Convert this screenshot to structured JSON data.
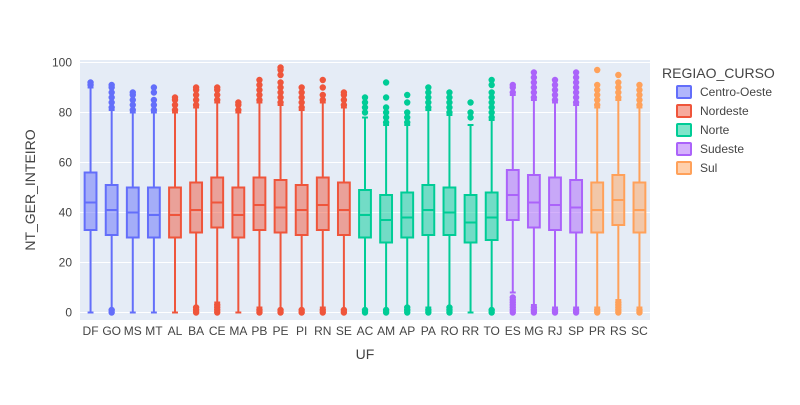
{
  "chart_data": {
    "type": "box",
    "xlabel": "UF",
    "ylabel": "NT_GER_INTEIRO",
    "ylim": [
      -3,
      101
    ],
    "yticks": [
      0,
      20,
      40,
      60,
      80,
      100
    ],
    "grid": true,
    "legend": {
      "title": "REGIAO_CURSO",
      "placement": "right",
      "entries": [
        {
          "name": "Centro-Oeste",
          "color": "#636efa"
        },
        {
          "name": "Nordeste",
          "color": "#EF553B"
        },
        {
          "name": "Norte",
          "color": "#00cc96"
        },
        {
          "name": "Sudeste",
          "color": "#ab63fa"
        },
        {
          "name": "Sul",
          "color": "#FFA15A"
        }
      ]
    },
    "categories": [
      "DF",
      "GO",
      "MS",
      "MT",
      "AL",
      "BA",
      "CE",
      "MA",
      "PB",
      "PE",
      "PI",
      "RN",
      "SE",
      "AC",
      "AM",
      "AP",
      "PA",
      "RO",
      "RR",
      "TO",
      "ES",
      "MG",
      "RJ",
      "SP",
      "PR",
      "RS",
      "SC"
    ],
    "boxes": [
      {
        "uf": "DF",
        "region": "Centro-Oeste",
        "lower_fence": 0,
        "q1": 33,
        "median": 44,
        "q3": 56,
        "upper_fence": 90,
        "outliers_low": [],
        "outliers_high": [
          91,
          92
        ]
      },
      {
        "uf": "GO",
        "region": "Centro-Oeste",
        "lower_fence": 1,
        "q1": 31,
        "median": 41,
        "q3": 51,
        "upper_fence": 81,
        "outliers_low": [
          0,
          1
        ],
        "outliers_high": [
          82,
          84,
          86,
          88,
          90,
          91
        ]
      },
      {
        "uf": "MS",
        "region": "Centro-Oeste",
        "lower_fence": 0,
        "q1": 30,
        "median": 40,
        "q3": 50,
        "upper_fence": 80,
        "outliers_low": [],
        "outliers_high": [
          81,
          83,
          85,
          87,
          88
        ]
      },
      {
        "uf": "MT",
        "region": "Centro-Oeste",
        "lower_fence": 0,
        "q1": 30,
        "median": 39,
        "q3": 50,
        "upper_fence": 80,
        "outliers_low": [],
        "outliers_high": [
          81,
          83,
          85,
          88,
          90
        ]
      },
      {
        "uf": "AL",
        "region": "Nordeste",
        "lower_fence": 0,
        "q1": 30,
        "median": 39,
        "q3": 50,
        "upper_fence": 80,
        "outliers_low": [],
        "outliers_high": [
          81,
          83,
          85,
          86
        ]
      },
      {
        "uf": "BA",
        "region": "Nordeste",
        "lower_fence": 0,
        "q1": 32,
        "median": 41,
        "q3": 52,
        "upper_fence": 82,
        "outliers_low": [
          0,
          1,
          2
        ],
        "outliers_high": [
          83,
          85,
          87,
          89,
          90
        ]
      },
      {
        "uf": "CE",
        "region": "Nordeste",
        "lower_fence": 4,
        "q1": 34,
        "median": 44,
        "q3": 54,
        "upper_fence": 84,
        "outliers_low": [
          0,
          1,
          2,
          3
        ],
        "outliers_high": [
          85,
          87,
          89,
          90
        ]
      },
      {
        "uf": "MA",
        "region": "Nordeste",
        "lower_fence": 0,
        "q1": 30,
        "median": 39,
        "q3": 50,
        "upper_fence": 80,
        "outliers_low": [],
        "outliers_high": [
          81,
          83,
          84
        ]
      },
      {
        "uf": "PB",
        "region": "Nordeste",
        "lower_fence": 2,
        "q1": 33,
        "median": 43,
        "q3": 54,
        "upper_fence": 84,
        "outliers_low": [
          0,
          1
        ],
        "outliers_high": [
          85,
          87,
          89,
          91,
          93
        ]
      },
      {
        "uf": "PE",
        "region": "Nordeste",
        "lower_fence": 0,
        "q1": 32,
        "median": 42,
        "q3": 53,
        "upper_fence": 83,
        "outliers_low": [
          0,
          1
        ],
        "outliers_high": [
          84,
          86,
          88,
          90,
          92,
          95,
          97,
          98
        ]
      },
      {
        "uf": "PI",
        "region": "Nordeste",
        "lower_fence": 0,
        "q1": 31,
        "median": 41,
        "q3": 51,
        "upper_fence": 81,
        "outliers_low": [
          0,
          1
        ],
        "outliers_high": [
          82,
          84,
          86,
          88,
          90
        ]
      },
      {
        "uf": "RN",
        "region": "Nordeste",
        "lower_fence": 2,
        "q1": 33,
        "median": 43,
        "q3": 54,
        "upper_fence": 84,
        "outliers_low": [
          0,
          1
        ],
        "outliers_high": [
          85,
          87,
          90,
          93
        ]
      },
      {
        "uf": "SE",
        "region": "Nordeste",
        "lower_fence": 0,
        "q1": 31,
        "median": 41,
        "q3": 52,
        "upper_fence": 82,
        "outliers_low": [
          0,
          1
        ],
        "outliers_high": [
          83,
          85,
          87,
          88
        ]
      },
      {
        "uf": "AC",
        "region": "Norte",
        "lower_fence": 0,
        "q1": 30,
        "median": 39,
        "q3": 49,
        "upper_fence": 78,
        "outliers_low": [
          0,
          1
        ],
        "outliers_high": [
          80,
          82,
          84,
          86
        ]
      },
      {
        "uf": "AM",
        "region": "Norte",
        "lower_fence": 0,
        "q1": 28,
        "median": 37,
        "q3": 47,
        "upper_fence": 75,
        "outliers_low": [
          0,
          1
        ],
        "outliers_high": [
          76,
          78,
          80,
          82,
          86,
          92
        ]
      },
      {
        "uf": "AP",
        "region": "Norte",
        "lower_fence": 1,
        "q1": 30,
        "median": 38,
        "q3": 48,
        "upper_fence": 75,
        "outliers_low": [
          0,
          1,
          2
        ],
        "outliers_high": [
          76,
          78,
          80,
          84,
          87
        ]
      },
      {
        "uf": "PA",
        "region": "Norte",
        "lower_fence": 2,
        "q1": 31,
        "median": 41,
        "q3": 51,
        "upper_fence": 81,
        "outliers_low": [
          0,
          1
        ],
        "outliers_high": [
          82,
          84,
          86,
          88,
          90
        ]
      },
      {
        "uf": "RO",
        "region": "Norte",
        "lower_fence": 2,
        "q1": 31,
        "median": 40,
        "q3": 50,
        "upper_fence": 79,
        "outliers_low": [
          0,
          1,
          2
        ],
        "outliers_high": [
          80,
          82,
          84,
          86,
          88
        ]
      },
      {
        "uf": "RR",
        "region": "Norte",
        "lower_fence": 0,
        "q1": 28,
        "median": 36,
        "q3": 47,
        "upper_fence": 75,
        "outliers_low": [],
        "outliers_high": [
          78,
          80,
          84
        ]
      },
      {
        "uf": "TO",
        "region": "Norte",
        "lower_fence": 1,
        "q1": 29,
        "median": 38,
        "q3": 48,
        "upper_fence": 77,
        "outliers_low": [
          0,
          1
        ],
        "outliers_high": [
          78,
          80,
          82,
          84,
          86,
          88,
          91,
          93
        ]
      },
      {
        "uf": "ES",
        "region": "Sudeste",
        "lower_fence": 8,
        "q1": 37,
        "median": 47,
        "q3": 57,
        "upper_fence": 87,
        "outliers_low": [
          0,
          1,
          2,
          3,
          4,
          5,
          6
        ],
        "outliers_high": [
          88,
          90,
          91
        ]
      },
      {
        "uf": "MG",
        "region": "Sudeste",
        "lower_fence": 3,
        "q1": 34,
        "median": 44,
        "q3": 55,
        "upper_fence": 85,
        "outliers_low": [
          0,
          1,
          2
        ],
        "outliers_high": [
          86,
          88,
          90,
          92,
          94,
          96
        ]
      },
      {
        "uf": "RJ",
        "region": "Sudeste",
        "lower_fence": 2,
        "q1": 33,
        "median": 43,
        "q3": 54,
        "upper_fence": 84,
        "outliers_low": [
          0,
          1
        ],
        "outliers_high": [
          85,
          87,
          89,
          91,
          93
        ]
      },
      {
        "uf": "SP",
        "region": "Sudeste",
        "lower_fence": 2,
        "q1": 32,
        "median": 42,
        "q3": 53,
        "upper_fence": 83,
        "outliers_low": [
          0,
          1
        ],
        "outliers_high": [
          84,
          86,
          88,
          90,
          92,
          94,
          96
        ]
      },
      {
        "uf": "PR",
        "region": "Sul",
        "lower_fence": 2,
        "q1": 32,
        "median": 41,
        "q3": 52,
        "upper_fence": 82,
        "outliers_low": [
          0,
          1
        ],
        "outliers_high": [
          83,
          85,
          87,
          89,
          91,
          97
        ]
      },
      {
        "uf": "RS",
        "region": "Sul",
        "lower_fence": 5,
        "q1": 35,
        "median": 45,
        "q3": 55,
        "upper_fence": 85,
        "outliers_low": [
          0,
          1,
          2,
          3,
          4
        ],
        "outliers_high": [
          86,
          88,
          90,
          92,
          95
        ]
      },
      {
        "uf": "SC",
        "region": "Sul",
        "lower_fence": 2,
        "q1": 32,
        "median": 41,
        "q3": 52,
        "upper_fence": 82,
        "outliers_low": [
          0,
          1
        ],
        "outliers_high": [
          83,
          85,
          87,
          89,
          91
        ]
      }
    ]
  }
}
